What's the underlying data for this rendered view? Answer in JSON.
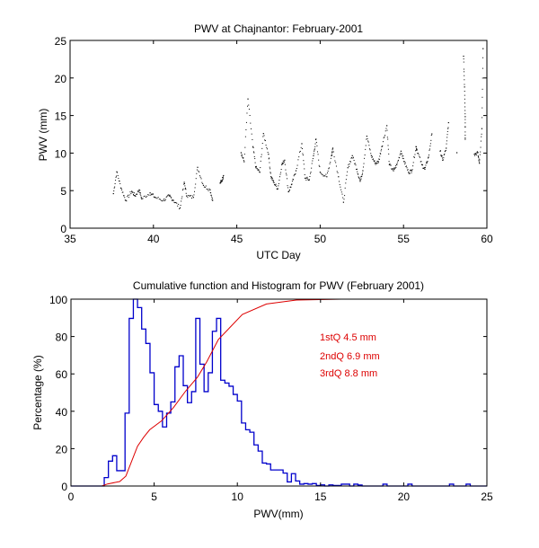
{
  "chart_data": [
    {
      "type": "scatter",
      "title": "PWV at Chajnantor: February-2001",
      "xlabel": "UTC Day",
      "ylabel": "PWV (mm)",
      "xlim": [
        35,
        60
      ],
      "ylim": [
        0,
        25
      ],
      "xticks": [
        35,
        40,
        45,
        50,
        55,
        60
      ],
      "yticks": [
        0,
        5,
        10,
        15,
        20,
        25
      ],
      "grid": false,
      "marker_color": "#000000",
      "series": [
        {
          "name": "PWV",
          "segments": [
            {
              "x": [
                37.6,
                37.8,
                38.07,
                38.34,
                38.7,
                38.9,
                39.15,
                39.3,
                39.8,
                40.1,
                40.6,
                40.95,
                41.2,
                41.6,
                41.85,
                42.0,
                42.4,
                42.65,
                43.0,
                43.4,
                43.55
              ],
              "y": [
                4.6,
                7.5,
                5.3,
                3.7,
                4.9,
                4.3,
                5.1,
                3.9,
                4.7,
                4.1,
                3.7,
                4.3,
                3.7,
                2.7,
                6.1,
                4.3,
                4.1,
                8.1,
                5.7,
                5.1,
                3.7
              ]
            },
            {
              "x": [
                44.0,
                44.1,
                44.2
              ],
              "y": [
                6.0,
                6.3,
                7.0
              ]
            },
            {
              "x": [
                45.26,
                45.44,
                45.67,
                45.97,
                46.15,
                46.38,
                46.6,
                46.9,
                47.05,
                47.23,
                47.46,
                47.7,
                47.87,
                48.1,
                48.3,
                48.55,
                48.9,
                49.1,
                49.35,
                49.6,
                49.75,
                50.0,
                50.4,
                50.68,
                50.76,
                51.1,
                51.4,
                51.66,
                51.93,
                52.2,
                52.4,
                52.56,
                52.8,
                53.07,
                53.3,
                53.5,
                53.7,
                54.0,
                54.15,
                54.4,
                54.6,
                54.85,
                55.05,
                55.3,
                55.5,
                55.75,
                55.8,
                56.1,
                56.28,
                56.5,
                56.7
              ],
              "y": [
                10.05,
                8.85,
                17.2,
                10.85,
                8.05,
                7.45,
                12.6,
                9.85,
                6.85,
                6.05,
                5.25,
                8.45,
                9.05,
                4.85,
                5.85,
                7.65,
                11.25,
                6.65,
                6.45,
                9.65,
                11.85,
                7.45,
                6.85,
                9.65,
                10.65,
                6.85,
                3.45,
                8.05,
                9.65,
                7.85,
                6.25,
                7.65,
                12.25,
                9.65,
                8.65,
                8.85,
                10.85,
                13.65,
                8.45,
                7.65,
                8.45,
                10.25,
                8.85,
                7.45,
                7.65,
                10.85,
                10.45,
                8.45,
                7.85,
                9.45,
                12.55
              ]
            },
            {
              "x": [
                57.2,
                57.35,
                57.56,
                57.7
              ],
              "y": [
                10.25,
                9.05,
                10.65,
                14.05
              ]
            },
            {
              "x": [
                58.2
              ],
              "y": [
                10.05
              ]
            },
            {
              "x": [
                58.6,
                58.66,
                58.7,
                58.7
              ],
              "y": [
                22.9,
                18.8,
                14.85,
                11.85
              ]
            },
            {
              "x": [
                59.25,
                59.45,
                59.55,
                59.7,
                59.77
              ],
              "y": [
                9.85,
                10.05,
                8.65,
                13.25,
                23.9
              ]
            }
          ]
        }
      ]
    },
    {
      "type": "bar",
      "subtype": "histogram+line",
      "title": "Cumulative function and Histogram for PWV (February 2001)",
      "xlabel": "PWV(mm)",
      "ylabel": "Percentage (%)",
      "xlim": [
        0,
        25
      ],
      "ylim": [
        0,
        100
      ],
      "xticks": [
        0,
        5,
        10,
        15,
        20,
        25
      ],
      "yticks": [
        0,
        20,
        40,
        60,
        80,
        100
      ],
      "grid": false,
      "histogram": {
        "name": "Histogram",
        "color": "#0000cc",
        "bin_start": 2.0,
        "bin_width": 0.25,
        "values": [
          4.5,
          13.3,
          16.2,
          8.2,
          8.2,
          39,
          89.7,
          100,
          95.5,
          84,
          76.3,
          60.6,
          43.6,
          40,
          31.6,
          39,
          45,
          63.8,
          69.7,
          53.7,
          44.6,
          50.5,
          89.7,
          65.2,
          50.5,
          60.6,
          82.8,
          89.7,
          56.6,
          55.1,
          53.4,
          49,
          45.5,
          33.7,
          30.1,
          28.8,
          22,
          18.7,
          12.3,
          11.8,
          8.6,
          8.6,
          8.6,
          6.9,
          2.2,
          6.6,
          2.7,
          1.0,
          1.3,
          1.0,
          1.3,
          0.3,
          0.6,
          0,
          0.6,
          0.3,
          0.3,
          1.0,
          1.0,
          0,
          1.0,
          0.5,
          0,
          0,
          0,
          0,
          0,
          1.0,
          0,
          0,
          0,
          0,
          0,
          1.0,
          0,
          0,
          0,
          0,
          0,
          0,
          0,
          0,
          0,
          1.0,
          0,
          0,
          0,
          1.0,
          0,
          0,
          0,
          0
        ]
      },
      "cumulative": {
        "name": "Cumulative function",
        "color": "#dd0000",
        "x": [
          0,
          1.85,
          2.2,
          2.93,
          3.3,
          3.65,
          4.0,
          4.37,
          4.73,
          5.45,
          6.17,
          6.9,
          7.6,
          8.15,
          8.86,
          10.3,
          11.75,
          13.55,
          16.25,
          25
        ],
        "y": [
          0,
          0,
          1.1,
          2.4,
          5.3,
          13.3,
          21.3,
          26.1,
          30.1,
          34.9,
          42.1,
          50.9,
          58.2,
          66.3,
          78.4,
          91.8,
          97.4,
          99.5,
          100,
          100
        ]
      },
      "annotations": [
        "1stQ 4.5 mm",
        "2ndQ 6.9 mm",
        "3rdQ 8.8 mm"
      ],
      "annotation_color": "#dd0000"
    }
  ]
}
